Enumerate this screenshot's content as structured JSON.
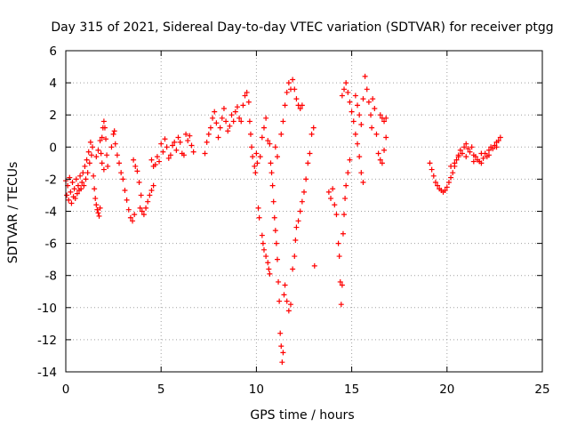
{
  "chart_data": {
    "type": "scatter",
    "title": "Day 315 of 2021, Sidereal Day-to-day VTEC variation (SDTVAR) for receiver ptgg",
    "xlabel": "GPS time / hours",
    "ylabel": "SDTVAR / TECUs",
    "xlim": [
      0,
      25
    ],
    "ylim": [
      -14,
      6
    ],
    "x_ticks": [
      "0",
      "5",
      "10",
      "15",
      "20",
      "25"
    ],
    "y_ticks": [
      "6",
      "4",
      "2",
      "0",
      "-2",
      "-4",
      "-6",
      "-8",
      "-10",
      "-12",
      "-14"
    ],
    "grid": true,
    "marker": "plus",
    "colors": {
      "series": "#ff0000",
      "grid": "#a0a0a0",
      "axis": "#000000"
    },
    "series": [
      {
        "points": [
          [
            0.0,
            -2.1
          ],
          [
            0.05,
            -3.0
          ],
          [
            0.1,
            -2.4
          ],
          [
            0.15,
            -3.3
          ],
          [
            0.2,
            -1.9
          ],
          [
            0.25,
            -2.8
          ],
          [
            0.3,
            -3.5
          ],
          [
            0.35,
            -2.2
          ],
          [
            0.4,
            -3.1
          ],
          [
            0.45,
            -2.6
          ],
          [
            0.5,
            -3.2
          ],
          [
            0.55,
            -2.0
          ],
          [
            0.6,
            -2.9
          ],
          [
            0.65,
            -2.4
          ],
          [
            0.7,
            -2.7
          ],
          [
            0.75,
            -1.8
          ],
          [
            0.8,
            -2.6
          ],
          [
            0.85,
            -2.2
          ],
          [
            0.9,
            -1.6
          ],
          [
            0.95,
            -2.4
          ],
          [
            1.0,
            -1.2
          ],
          [
            1.05,
            -2.0
          ],
          [
            1.1,
            -0.8
          ],
          [
            1.15,
            -1.6
          ],
          [
            1.2,
            -0.3
          ],
          [
            1.25,
            -1.0
          ],
          [
            1.3,
            0.3
          ],
          [
            1.35,
            -0.5
          ],
          [
            1.4,
            0.0
          ],
          [
            1.45,
            -1.8
          ],
          [
            1.5,
            -2.6
          ],
          [
            1.55,
            -3.2
          ],
          [
            1.6,
            -3.6
          ],
          [
            1.65,
            -3.9
          ],
          [
            1.7,
            -4.1
          ],
          [
            1.75,
            -4.3
          ],
          [
            1.8,
            -3.8
          ],
          [
            1.85,
            -0.4
          ],
          [
            1.9,
            0.6
          ],
          [
            1.95,
            1.2
          ],
          [
            2.0,
            1.6
          ],
          [
            2.05,
            1.2
          ],
          [
            2.1,
            0.5
          ],
          [
            2.15,
            -0.5
          ],
          [
            2.2,
            -1.2
          ],
          [
            1.6,
            -0.6
          ],
          [
            1.7,
            -0.2
          ],
          [
            1.8,
            0.4
          ],
          [
            1.9,
            -1.0
          ],
          [
            2.0,
            -1.4
          ],
          [
            2.4,
            0.0
          ],
          [
            2.5,
            0.8
          ],
          [
            2.55,
            1.0
          ],
          [
            2.6,
            0.2
          ],
          [
            2.7,
            -0.5
          ],
          [
            2.8,
            -1.0
          ],
          [
            2.9,
            -1.6
          ],
          [
            3.0,
            -2.0
          ],
          [
            3.1,
            -2.7
          ],
          [
            3.2,
            -3.3
          ],
          [
            3.3,
            -3.9
          ],
          [
            3.4,
            -4.4
          ],
          [
            3.5,
            -4.6
          ],
          [
            3.6,
            -4.2
          ],
          [
            3.55,
            -0.8
          ],
          [
            3.65,
            -1.2
          ],
          [
            3.75,
            -1.5
          ],
          [
            3.85,
            -2.2
          ],
          [
            3.9,
            -3.8
          ],
          [
            3.95,
            -3.0
          ],
          [
            4.0,
            -4.0
          ],
          [
            4.1,
            -4.2
          ],
          [
            4.2,
            -3.8
          ],
          [
            4.3,
            -3.4
          ],
          [
            4.4,
            -3.0
          ],
          [
            4.5,
            -2.7
          ],
          [
            4.6,
            -2.4
          ],
          [
            4.5,
            -0.8
          ],
          [
            4.6,
            -1.2
          ],
          [
            4.7,
            -1.1
          ],
          [
            4.8,
            -0.6
          ],
          [
            4.9,
            -0.9
          ],
          [
            5.0,
            0.2
          ],
          [
            5.1,
            -0.3
          ],
          [
            5.2,
            0.5
          ],
          [
            5.3,
            0.0
          ],
          [
            5.4,
            -0.7
          ],
          [
            5.5,
            -0.5
          ],
          [
            5.6,
            0.1
          ],
          [
            5.7,
            0.3
          ],
          [
            5.8,
            -0.2
          ],
          [
            5.9,
            0.6
          ],
          [
            6.0,
            0.3
          ],
          [
            6.1,
            -0.4
          ],
          [
            6.2,
            -0.5
          ],
          [
            6.3,
            0.8
          ],
          [
            6.4,
            0.4
          ],
          [
            6.5,
            0.7
          ],
          [
            6.6,
            0.1
          ],
          [
            6.7,
            -0.3
          ],
          [
            7.3,
            -0.4
          ],
          [
            7.4,
            0.3
          ],
          [
            7.5,
            0.8
          ],
          [
            7.6,
            1.2
          ],
          [
            7.7,
            1.8
          ],
          [
            7.8,
            2.2
          ],
          [
            7.9,
            1.5
          ],
          [
            8.0,
            0.6
          ],
          [
            8.1,
            1.2
          ],
          [
            8.2,
            1.8
          ],
          [
            8.3,
            2.4
          ],
          [
            8.4,
            1.6
          ],
          [
            8.5,
            1.0
          ],
          [
            8.6,
            1.3
          ],
          [
            8.7,
            2.0
          ],
          [
            8.8,
            1.6
          ],
          [
            8.9,
            2.2
          ],
          [
            9.0,
            2.5
          ],
          [
            9.1,
            1.8
          ],
          [
            9.2,
            1.6
          ],
          [
            9.3,
            2.6
          ],
          [
            9.4,
            3.2
          ],
          [
            9.5,
            3.4
          ],
          [
            9.6,
            2.8
          ],
          [
            9.65,
            1.6
          ],
          [
            9.7,
            0.8
          ],
          [
            9.75,
            0.0
          ],
          [
            9.8,
            -0.6
          ],
          [
            9.9,
            -1.2
          ],
          [
            9.95,
            -1.6
          ],
          [
            10.0,
            -0.4
          ],
          [
            10.05,
            -1.0
          ],
          [
            10.1,
            -3.8
          ],
          [
            10.15,
            -4.4
          ],
          [
            10.2,
            -0.6
          ],
          [
            10.3,
            -5.5
          ],
          [
            10.35,
            -6.0
          ],
          [
            10.4,
            -6.4
          ],
          [
            10.5,
            -6.8
          ],
          [
            10.6,
            -7.2
          ],
          [
            10.65,
            -7.6
          ],
          [
            10.7,
            -7.9
          ],
          [
            10.75,
            -1.0
          ],
          [
            10.8,
            -1.6
          ],
          [
            10.85,
            -2.4
          ],
          [
            10.9,
            -3.4
          ],
          [
            10.95,
            -4.4
          ],
          [
            11.0,
            -5.2
          ],
          [
            11.05,
            -6.0
          ],
          [
            11.1,
            -7.0
          ],
          [
            11.15,
            -8.4
          ],
          [
            11.2,
            -9.6
          ],
          [
            11.25,
            -11.6
          ],
          [
            11.3,
            -12.4
          ],
          [
            11.35,
            -13.4
          ],
          [
            11.4,
            -12.8
          ],
          [
            11.45,
            -9.2
          ],
          [
            11.5,
            -8.6
          ],
          [
            11.6,
            -9.6
          ],
          [
            11.7,
            -10.2
          ],
          [
            11.8,
            -9.8
          ],
          [
            11.9,
            -7.6
          ],
          [
            12.0,
            -6.8
          ],
          [
            12.05,
            -5.8
          ],
          [
            12.1,
            -5.0
          ],
          [
            12.2,
            -4.6
          ],
          [
            12.3,
            -4.0
          ],
          [
            12.4,
            -3.4
          ],
          [
            12.5,
            -2.8
          ],
          [
            12.6,
            -2.0
          ],
          [
            12.7,
            -1.0
          ],
          [
            12.8,
            -0.4
          ],
          [
            12.9,
            0.8
          ],
          [
            13.0,
            1.2
          ],
          [
            13.05,
            -7.4
          ],
          [
            10.3,
            0.6
          ],
          [
            10.4,
            1.2
          ],
          [
            10.5,
            1.8
          ],
          [
            10.6,
            0.4
          ],
          [
            10.7,
            0.2
          ],
          [
            11.0,
            0.0
          ],
          [
            11.1,
            -0.6
          ],
          [
            11.3,
            0.8
          ],
          [
            11.4,
            1.6
          ],
          [
            11.5,
            2.6
          ],
          [
            11.6,
            3.4
          ],
          [
            11.7,
            4.0
          ],
          [
            11.8,
            3.6
          ],
          [
            11.9,
            4.2
          ],
          [
            12.0,
            3.6
          ],
          [
            12.1,
            3.0
          ],
          [
            12.2,
            2.6
          ],
          [
            12.3,
            2.4
          ],
          [
            12.4,
            2.6
          ],
          [
            13.8,
            -2.8
          ],
          [
            13.9,
            -3.2
          ],
          [
            14.0,
            -2.6
          ],
          [
            14.1,
            -3.6
          ],
          [
            14.2,
            -4.2
          ],
          [
            14.3,
            -6.0
          ],
          [
            14.35,
            -6.8
          ],
          [
            14.4,
            -8.4
          ],
          [
            14.45,
            -9.8
          ],
          [
            14.5,
            -8.6
          ],
          [
            14.55,
            -5.4
          ],
          [
            14.6,
            -4.2
          ],
          [
            14.65,
            -3.2
          ],
          [
            14.7,
            -2.4
          ],
          [
            14.8,
            -1.6
          ],
          [
            14.9,
            -0.8
          ],
          [
            14.5,
            3.2
          ],
          [
            14.6,
            3.6
          ],
          [
            14.7,
            4.0
          ],
          [
            14.8,
            3.4
          ],
          [
            14.9,
            2.8
          ],
          [
            15.0,
            2.2
          ],
          [
            15.1,
            1.6
          ],
          [
            15.2,
            0.8
          ],
          [
            15.3,
            0.2
          ],
          [
            15.4,
            -0.6
          ],
          [
            15.5,
            -1.6
          ],
          [
            15.6,
            -2.2
          ],
          [
            15.2,
            3.2
          ],
          [
            15.3,
            2.6
          ],
          [
            15.4,
            2.0
          ],
          [
            15.5,
            1.4
          ],
          [
            15.6,
            3.0
          ],
          [
            15.7,
            4.4
          ],
          [
            15.8,
            3.6
          ],
          [
            15.9,
            2.8
          ],
          [
            16.0,
            2.0
          ],
          [
            16.05,
            1.2
          ],
          [
            16.1,
            3.0
          ],
          [
            16.2,
            2.4
          ],
          [
            16.3,
            0.8
          ],
          [
            16.4,
            -0.4
          ],
          [
            16.5,
            -0.8
          ],
          [
            16.6,
            -1.0
          ],
          [
            16.7,
            -0.2
          ],
          [
            16.8,
            0.6
          ],
          [
            16.5,
            2.0
          ],
          [
            16.6,
            1.8
          ],
          [
            16.7,
            1.6
          ],
          [
            16.8,
            1.8
          ],
          [
            19.1,
            -1.0
          ],
          [
            19.2,
            -1.4
          ],
          [
            19.3,
            -1.8
          ],
          [
            19.4,
            -2.2
          ],
          [
            19.5,
            -2.4
          ],
          [
            19.6,
            -2.6
          ],
          [
            19.7,
            -2.7
          ],
          [
            19.8,
            -2.8
          ],
          [
            19.9,
            -2.7
          ],
          [
            20.0,
            -2.5
          ],
          [
            20.1,
            -2.2
          ],
          [
            20.2,
            -1.9
          ],
          [
            20.3,
            -1.6
          ],
          [
            20.4,
            -1.2
          ],
          [
            20.5,
            -0.8
          ],
          [
            20.6,
            -0.5
          ],
          [
            20.7,
            -0.2
          ],
          [
            20.8,
            -0.4
          ],
          [
            20.9,
            0.0
          ],
          [
            21.0,
            0.2
          ],
          [
            21.1,
            -0.1
          ],
          [
            21.2,
            -0.3
          ],
          [
            21.3,
            0.0
          ],
          [
            21.4,
            -0.5
          ],
          [
            21.5,
            -0.6
          ],
          [
            21.6,
            -0.8
          ],
          [
            21.7,
            -0.9
          ],
          [
            21.8,
            -1.0
          ],
          [
            21.9,
            -0.7
          ],
          [
            22.0,
            -0.4
          ],
          [
            22.1,
            -0.6
          ],
          [
            22.2,
            -0.2
          ],
          [
            22.3,
            0.0
          ],
          [
            22.4,
            -0.1
          ],
          [
            22.5,
            0.1
          ],
          [
            22.6,
            0.3
          ],
          [
            22.7,
            0.4
          ],
          [
            22.8,
            0.6
          ],
          [
            20.2,
            -1.2
          ],
          [
            20.4,
            -1.0
          ],
          [
            20.6,
            -0.6
          ],
          [
            21.0,
            -0.6
          ],
          [
            21.4,
            -0.9
          ],
          [
            21.8,
            -0.4
          ],
          [
            22.2,
            -0.5
          ],
          [
            22.6,
            0.0
          ]
        ]
      }
    ]
  }
}
